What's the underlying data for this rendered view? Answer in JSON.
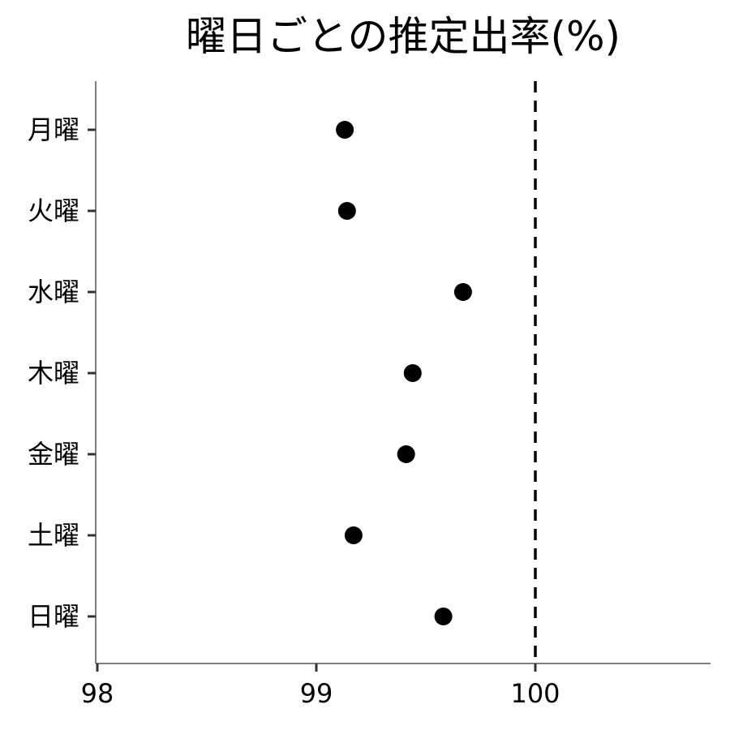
{
  "chart_data": {
    "type": "scatter",
    "title": "曜日ごとの推定出率(%)",
    "xlabel": "",
    "ylabel": "",
    "categories": [
      "月曜",
      "火曜",
      "水曜",
      "木曜",
      "金曜",
      "土曜",
      "日曜"
    ],
    "values": [
      99.13,
      99.14,
      99.67,
      99.44,
      99.41,
      99.17,
      99.58
    ],
    "xlim": [
      98,
      100.8
    ],
    "xticks": [
      "98",
      "99",
      "100"
    ],
    "reference_line": 100,
    "grid": false,
    "legend": "none",
    "colors": {
      "point": "#000000",
      "reference_line": "#000000",
      "axis": "#555555"
    }
  }
}
